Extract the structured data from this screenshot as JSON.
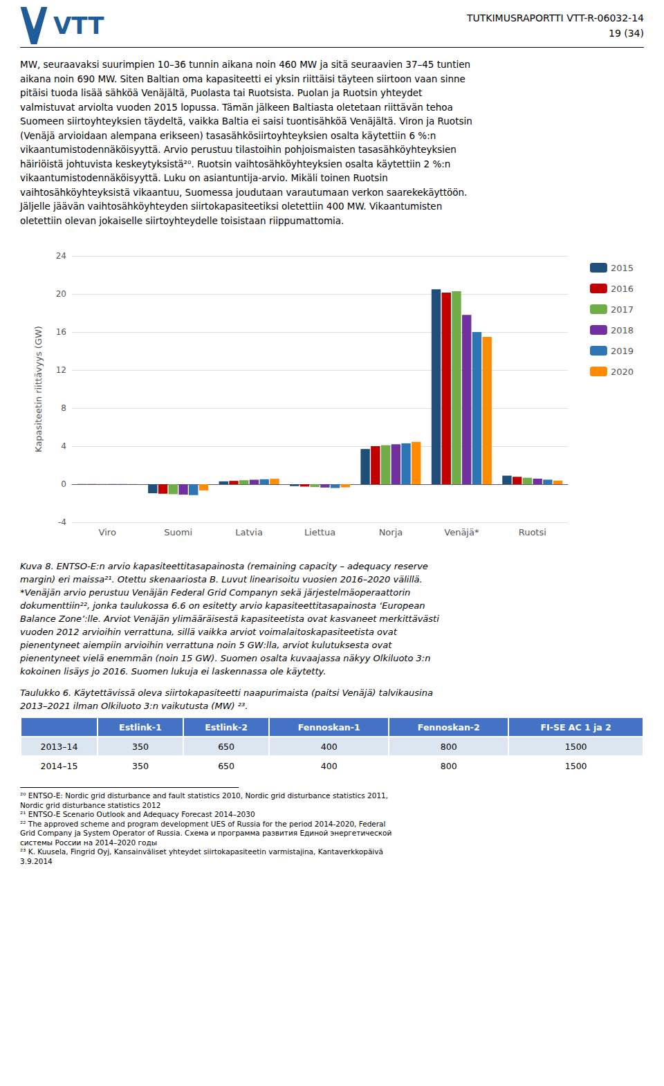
{
  "logo_text": "VTT",
  "logo_color": "#1F5C99",
  "header_text": "TUTKIMUSRAPORTTI VTT-R-06032-14",
  "header_page": "19 (34)",
  "body_text": [
    "MW, seuraavaksi suurimpien 10–36 tunnin aikana noin 460 MW ja sitä seuraavien 37–45 tuntien",
    "aikana noin 690 MW. Siten Baltian oma kapasiteetti ei yksin riittäisi täyteen siirtoon vaan sinne",
    "pitäisi tuoda lisää sähköä Venäjältä, Puolasta tai Ruotsista. Puolan ja Ruotsin yhteydet",
    "valmistuvat arviolta vuoden 2015 lopussa. Tämän jälkeen Baltiasta oletetaan riittävän tehoa",
    "Suomeen siirtoyhteyk​sien täydeltä, vaikka Baltia ei saisi tuontisähköä Venäjältä. Viron ja Ruotsin",
    "(Venäjä arvioidaan alempana erikseen) tasasähkösiirtoyhteyk​sien osalta käytettiin 6 %:n",
    "vikaantumistodennäköisyyttä. Arvio perustuu tilastoihin pohjoismaisten tasasähköyhteyk​sien",
    "häiriöistä johtuvista keskeytyksistä²⁰. Ruotsin vaihtosähköyhteyk​sien osalta käytettiin 2 %:n",
    "vikaantumistodennäköisyyttä. Luku on asiantuntija-arvio. Mikäli toinen Ruotsin",
    "vaihtosähköyhteyksistä vikaantuu, Suomessa joudutaan varautumaan verkon saarekekäyttöön.",
    "Jäljelle jäävän vaihtosähköyhteyden siirtokapasiteetiksi oletettiin 400 MW. Vikaantumisten",
    "oletettiin olevan jokaiselle siirtoyhteydelle toisistaan riippumattomia."
  ],
  "chart_data": {
    "type": "bar",
    "categories": [
      "Viro",
      "Suomi",
      "Latvia",
      "Liettua",
      "Norja",
      "Venäjä*",
      "Ruotsi"
    ],
    "series": [
      {
        "name": "2015",
        "color": "#1F4E79",
        "values": [
          0.02,
          -0.95,
          0.3,
          -0.2,
          3.7,
          20.5,
          0.9
        ]
      },
      {
        "name": "2016",
        "color": "#C00000",
        "values": [
          0.02,
          -1.0,
          0.35,
          -0.25,
          4.0,
          20.15,
          0.78
        ]
      },
      {
        "name": "2017",
        "color": "#70AD47",
        "values": [
          0.02,
          -1.05,
          0.42,
          -0.3,
          4.1,
          20.3,
          0.68
        ]
      },
      {
        "name": "2018",
        "color": "#7030A0",
        "values": [
          0.02,
          -1.1,
          0.47,
          -0.35,
          4.2,
          17.8,
          0.58
        ]
      },
      {
        "name": "2019",
        "color": "#2E75B6",
        "values": [
          0.02,
          -1.15,
          0.52,
          -0.4,
          4.3,
          16.0,
          0.48
        ]
      },
      {
        "name": "2020",
        "color": "#FF8C00",
        "values": [
          0.02,
          -0.65,
          0.57,
          -0.33,
          4.45,
          15.5,
          0.38
        ]
      }
    ],
    "ylabel": "Kapasiteetin riittävyys (GW)",
    "ylim": [
      -4,
      24
    ],
    "yticks": [
      -4,
      0,
      4,
      8,
      12,
      16,
      20,
      24
    ],
    "grid": true,
    "legend": "right"
  },
  "caption": [
    "Kuva 8. ENTSO-E:n arvio kapasiteettitasapainosta (remaining capacity – adequacy reserve",
    "margin) eri maissa²¹. Otettu skenaariosta B. Luvut linearisoitu vuosien 2016–2020 välillä.",
    "*Venäjän arvio perustuu Venäjän Federal Grid Companyn sekä järjestelmäoperaattorin",
    "dokumenttiin²², jonka taulukossa 6.6 on esitetty arvio kapasiteettitasapainosta ‘European",
    "Balance Zone’:lle. Arviot Venäjän ylimääräisestä kapasiteetista ovat kasvaneet merkittävästi",
    "vuoden 2012 arvioihin verrattuna, sillä vaikka arviot voimalaitoskapasiteetista ovat",
    "pienentyneet aiempiin arvioihin verrattuna noin 5 GW:lla, arviot kulutuksesta ovat",
    "pienentyneet vielä enemmän (noin 15 GW). Suomen osalta kuvaajassa näkyy Olkiluoto 3:n",
    "kokoinen lisäys jo 2016. Suomen lukuja ei laskennassa ole käytetty."
  ],
  "table_title": [
    "Taulukko 6. Käytettävissä oleva siirtokapasiteetti naapurimaista (paitsi Venäjä) talvikausina",
    "2013–2021 ilman Olkiluoto 3:n vaikutusta (MW) ²³."
  ],
  "table": {
    "headers": [
      null,
      "Estlink-1",
      "Estlink-2",
      "Fennoskan-1",
      "Fennoskan-2",
      "FI-SE AC 1 ja 2"
    ],
    "rows": [
      [
        "2013–14",
        "350",
        "650",
        "400",
        "800",
        "1500"
      ],
      [
        "2014–15",
        "350",
        "650",
        "400",
        "800",
        "1500"
      ]
    ],
    "header_color": "#4472C4",
    "row_colors": [
      "#DCE6F1",
      "#FFFFFF"
    ]
  },
  "footnotes": [
    "²⁰ ENTSO-E: Nordic grid disturbance and fault statistics 2010, Nordic grid disturbance statistics 2011,",
    "Nordic grid disturbance statistics 2012",
    "²¹ ENTSO-E Scenario Outlook and Adequacy Forecast 2014–2030",
    "²² The approved scheme and program development UES of Russia for the period 2014-2020, Federal",
    "Grid Company ja System Operator of Russia. Схема и программа развития Единой энергетической",
    "системы России на 2014–2020 годы",
    "²³ K. Kuusela, Fingrid Oyj, Kansainväliset yhteydet siirtokapasiteetin varmistajina, Kantaverkkopäivä",
    "3.9.2014"
  ]
}
